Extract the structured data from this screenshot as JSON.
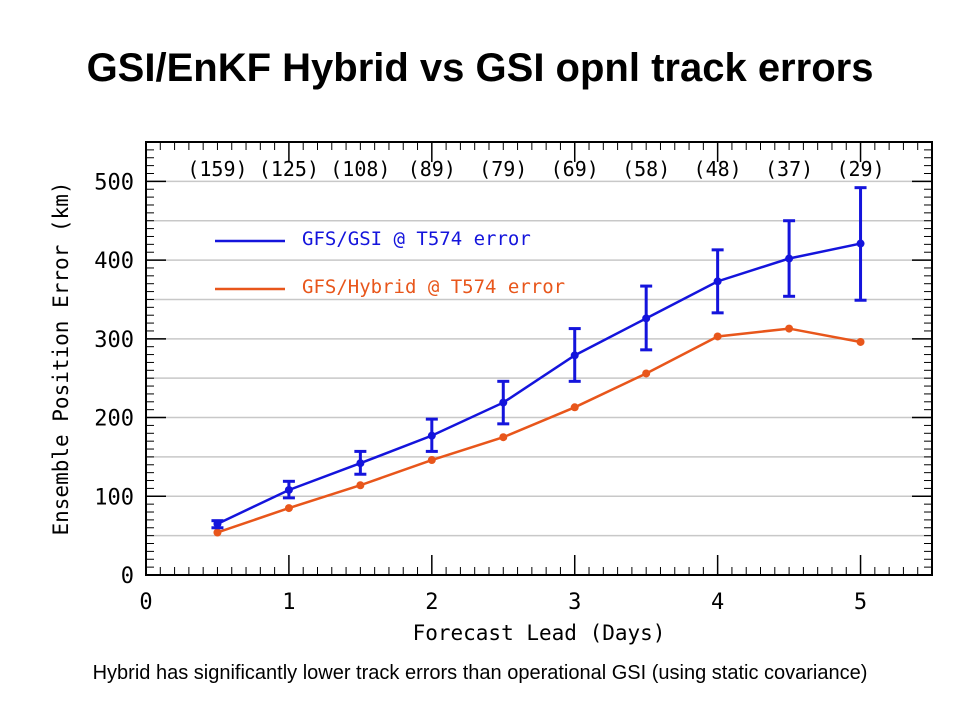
{
  "slide": {
    "title": "GSI/EnKF Hybrid vs GSI opnl track errors",
    "caption": "Hybrid has significantly lower track errors than operational GSI (using static covariance)"
  },
  "chart_data": {
    "type": "line",
    "xlabel": "Forecast Lead (Days)",
    "ylabel": "Ensemble Position Error (km)",
    "xlim": [
      0,
      5.5
    ],
    "ylim": [
      0,
      550
    ],
    "xticks": [
      0,
      1,
      2,
      3,
      4,
      5
    ],
    "yticks": [
      0,
      100,
      200,
      300,
      400,
      500
    ],
    "grid": true,
    "legend_position": "top-left",
    "x": [
      0.5,
      1,
      1.5,
      2,
      2.5,
      3,
      3.5,
      4,
      4.5,
      5
    ],
    "sample_counts": [
      "(159)",
      "(125)",
      "(108)",
      "(89)",
      "(79)",
      "(69)",
      "(58)",
      "(48)",
      "(37)",
      "(29)"
    ],
    "series": [
      {
        "name": "GFS/GSI @ T574 error",
        "color": "#1414dc",
        "values": [
          65,
          108,
          142,
          177,
          219,
          279,
          326,
          373,
          402,
          421
        ],
        "error_low": [
          60,
          98,
          128,
          157,
          192,
          246,
          286,
          333,
          354,
          349
        ],
        "error_high": [
          69,
          119,
          157,
          198,
          246,
          313,
          367,
          413,
          450,
          492
        ]
      },
      {
        "name": "GFS/Hybrid @ T574 error",
        "color": "#e8561b",
        "values": [
          54,
          85,
          114,
          146,
          175,
          213,
          256,
          303,
          313,
          296
        ]
      }
    ]
  }
}
